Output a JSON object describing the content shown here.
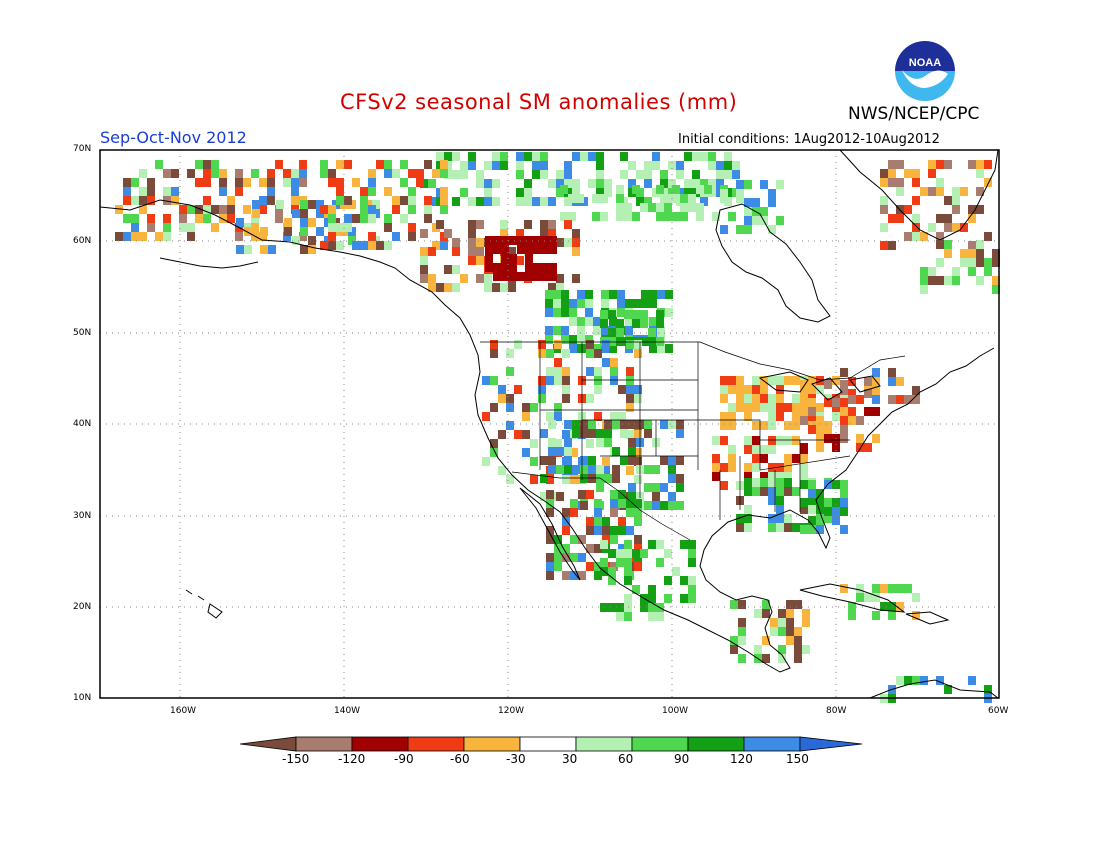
{
  "title": "CFSv2 seasonal SM anomalies (mm)",
  "season": "Sep-Oct-Nov 2012",
  "agency": "NWS/NCEP/CPC",
  "initial_conditions": "Initial conditions: 1Aug2012-10Aug2012",
  "logo_text": "NOAA",
  "map": {
    "lat_labels": [
      "70N",
      "60N",
      "50N",
      "40N",
      "30N",
      "20N",
      "10N"
    ],
    "lon_labels": [
      "160W",
      "140W",
      "120W",
      "100W",
      "80W",
      "60W"
    ],
    "grid": "dotted"
  },
  "colorbar": {
    "labels": [
      "-150",
      "-120",
      "-90",
      "-60",
      "-30",
      "30",
      "60",
      "90",
      "120",
      "150"
    ],
    "colors": [
      "#7a4a3a",
      "#a87c6e",
      "#a00000",
      "#f03c14",
      "#f8b43c",
      "#ffffff",
      "#b4f0b4",
      "#50d750",
      "#14a014",
      "#3c8ce6",
      "#2a6ad8"
    ]
  },
  "colors": {
    "title": "#d40000",
    "season": "#1a3cd8",
    "brown": "#7a4a3a",
    "tan": "#a87c6e",
    "darkred": "#a00000",
    "red": "#f03c14",
    "orange": "#f8b43c",
    "lightgreen": "#b4f0b4",
    "green": "#50d750",
    "darkgreen": "#14a014",
    "blue": "#3c8ce6"
  }
}
